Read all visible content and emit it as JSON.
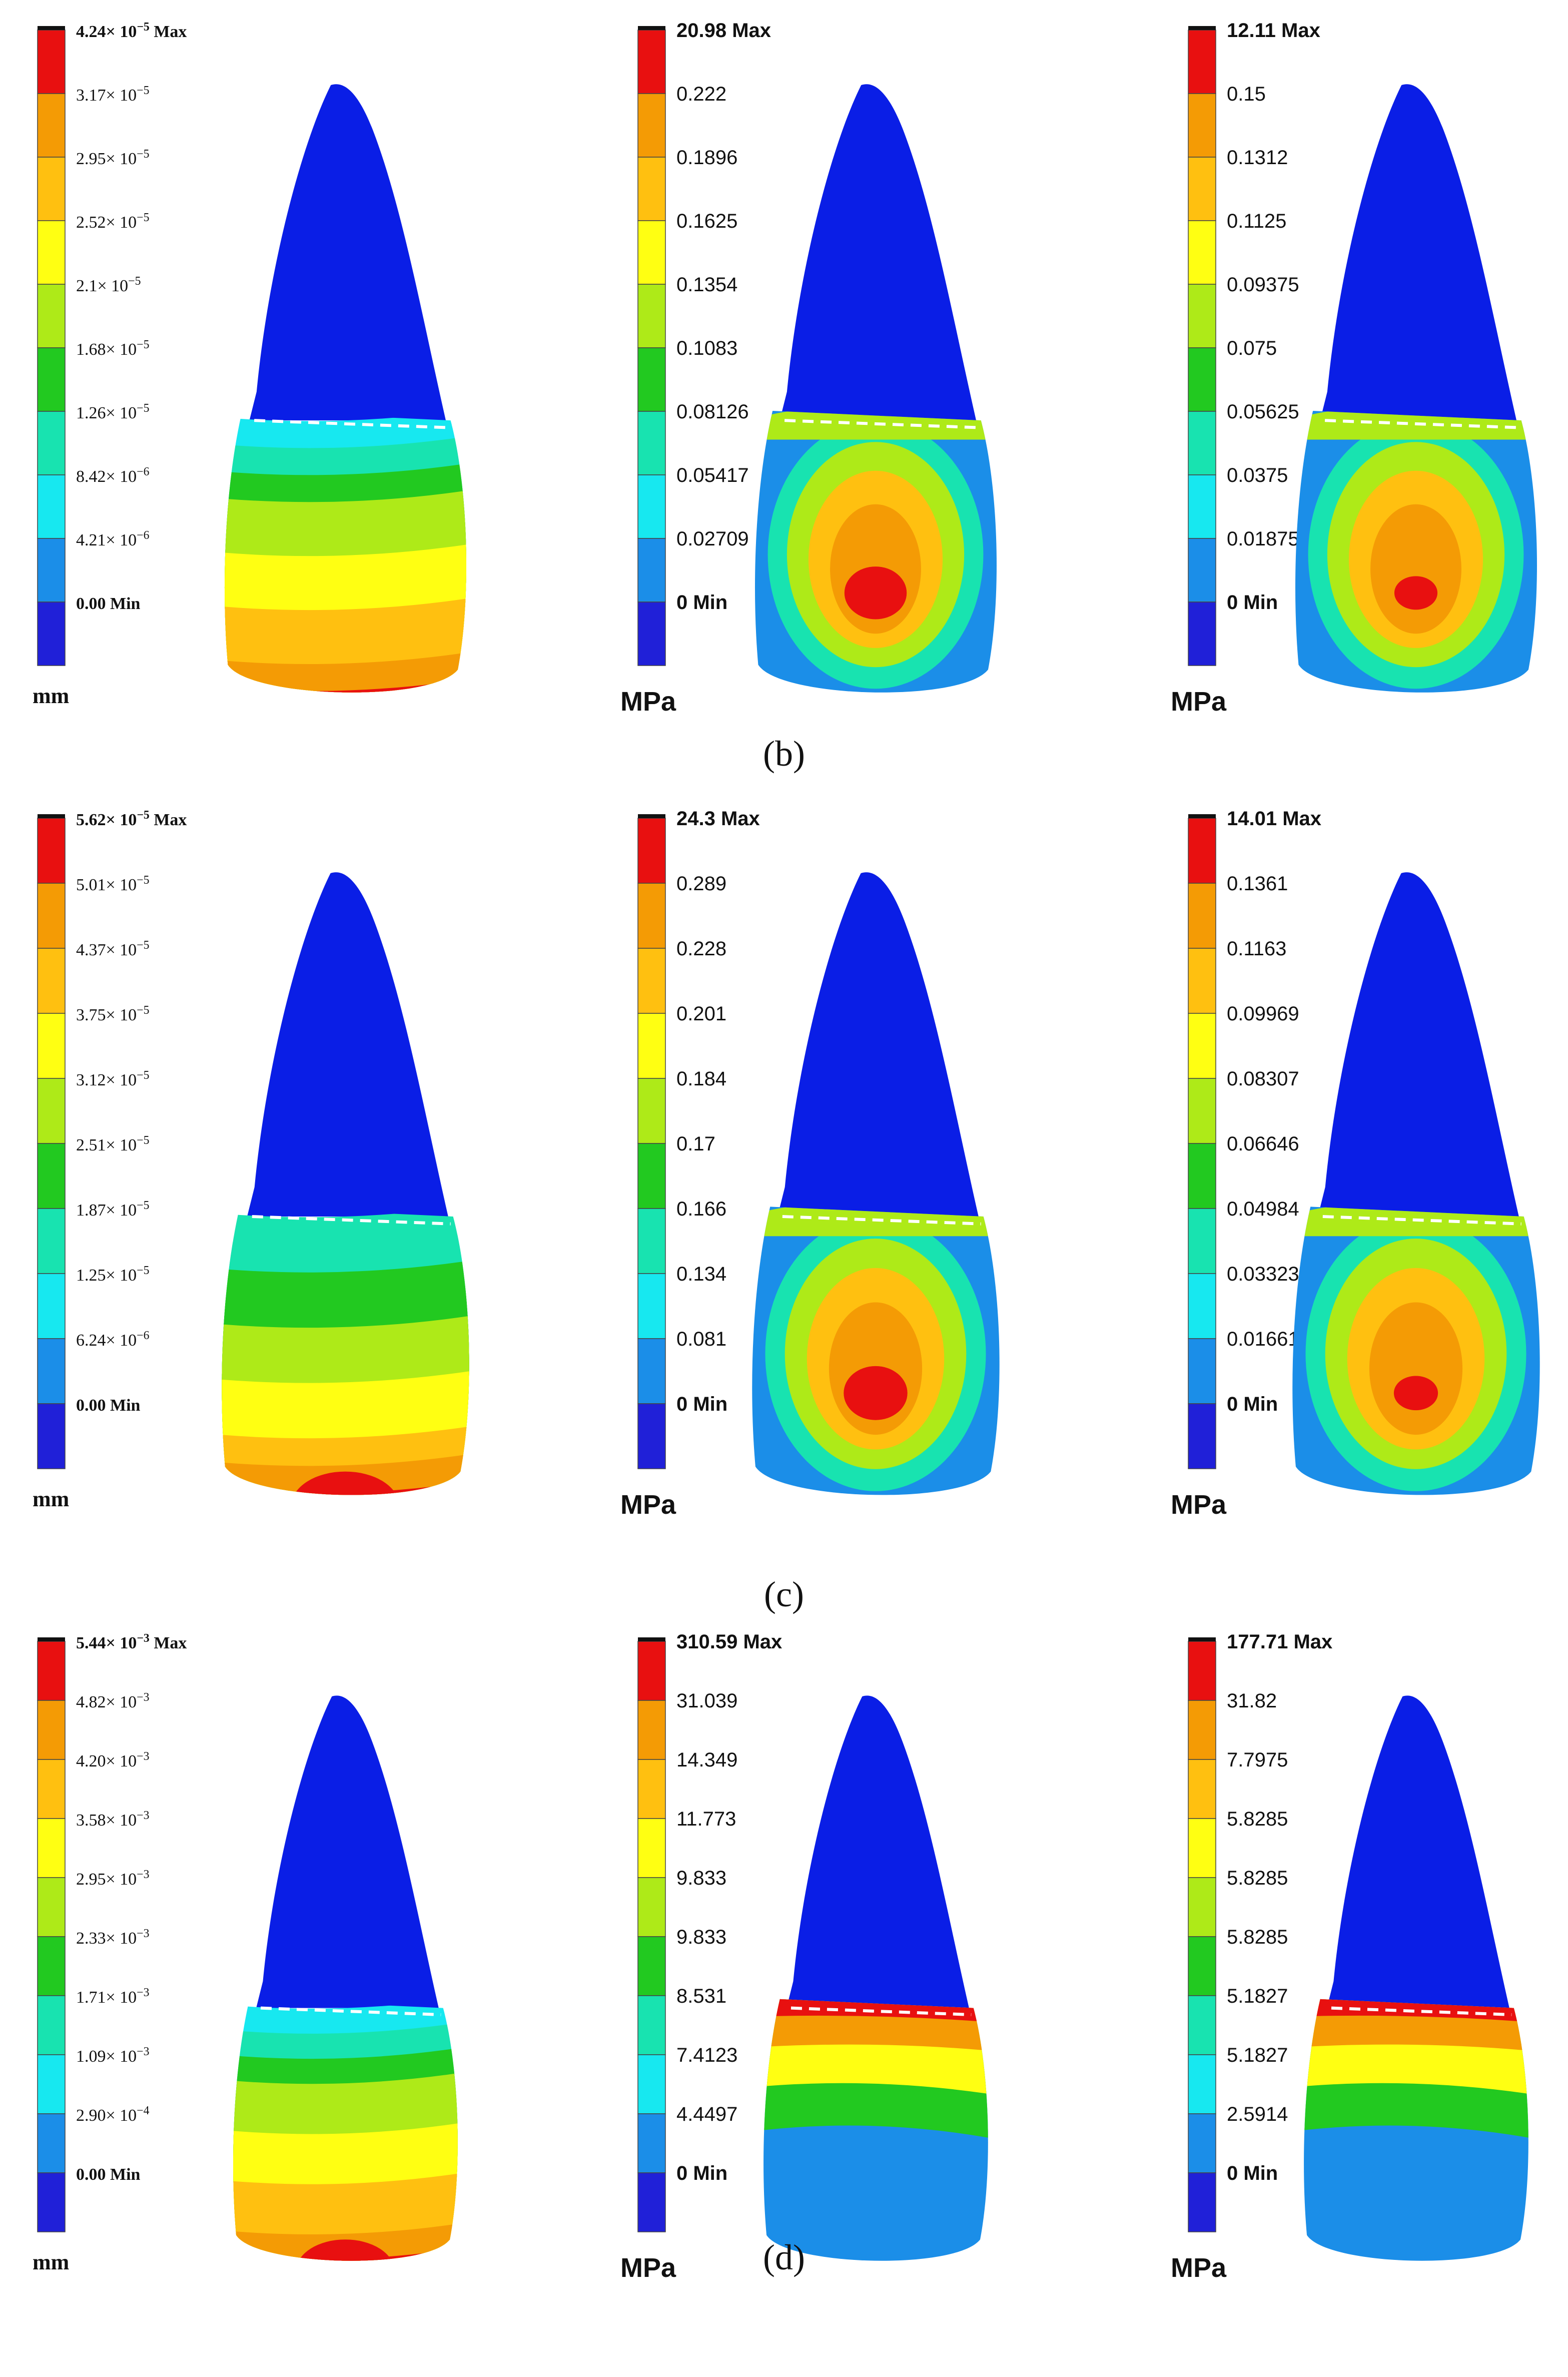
{
  "colors": {
    "tooth": "#0a1ee6",
    "line": "#ffffff",
    "scale": [
      "#2020d8",
      "#1b8ee8",
      "#17e8f0",
      "#18e3b0",
      "#22c920",
      "#aeea18",
      "#ffff12",
      "#ffc010",
      "#f49b05",
      "#e81010"
    ]
  },
  "rows": [
    {
      "caption": "(b)",
      "panels": [
        {
          "kind": "disp",
          "max": "4.24× 10",
          "max_exp": "−5",
          "max_suffix": " Max",
          "unit": "mm",
          "ticks": [
            [
              "3.17× 10",
              "−5"
            ],
            [
              "2.95× 10",
              "−5"
            ],
            [
              "2.52× 10",
              "−5"
            ],
            [
              "2.1× 10",
              "−5"
            ],
            [
              "1.68× 10",
              "−5"
            ],
            [
              "1.26× 10",
              "−5"
            ],
            [
              "8.42× 10",
              "−6"
            ],
            [
              "4.21× 10",
              "−6"
            ],
            [
              "0.00 Min",
              ""
            ]
          ]
        },
        {
          "kind": "stress",
          "max": "20.98 Max",
          "unit": "MPa",
          "ticks": [
            "0.222",
            "0.1896",
            "0.1625",
            "0.1354",
            "0.1083",
            "0.08126",
            "0.05417",
            "0.02709",
            "0 Min"
          ]
        },
        {
          "kind": "stress",
          "max": "12.11 Max",
          "unit": "MPa",
          "ticks": [
            "0.15",
            "0.1312",
            "0.1125",
            "0.09375",
            "0.075",
            "0.05625",
            "0.0375",
            "0.01875",
            "0 Min"
          ]
        }
      ]
    },
    {
      "caption": "(c)",
      "panels": [
        {
          "kind": "disp",
          "max": "5.62× 10",
          "max_exp": "−5",
          "max_suffix": " Max",
          "unit": "mm",
          "ticks": [
            [
              "5.01× 10",
              "−5"
            ],
            [
              "4.37× 10",
              "−5"
            ],
            [
              "3.75× 10",
              "−5"
            ],
            [
              "3.12× 10",
              "−5"
            ],
            [
              "2.51× 10",
              "−5"
            ],
            [
              "1.87× 10",
              "−5"
            ],
            [
              "1.25× 10",
              "−5"
            ],
            [
              "6.24× 10",
              "−6"
            ],
            [
              "0.00 Min",
              ""
            ]
          ]
        },
        {
          "kind": "stress",
          "max": "24.3 Max",
          "unit": "MPa",
          "ticks": [
            "0.289",
            "0.228",
            "0.201",
            "0.184",
            "0.17",
            "0.166",
            "0.134",
            "0.081",
            "0 Min"
          ]
        },
        {
          "kind": "stress",
          "max": "14.01 Max",
          "unit": "MPa",
          "ticks": [
            "0.1361",
            "0.1163",
            "0.09969",
            "0.08307",
            "0.06646",
            "0.04984",
            "0.03323",
            "0.01661",
            "0 Min"
          ]
        }
      ]
    },
    {
      "caption": "(d)",
      "panels": [
        {
          "kind": "disp",
          "max": "5.44× 10",
          "max_exp": "−3",
          "max_suffix": " Max",
          "unit": "mm",
          "ticks": [
            [
              "4.82× 10",
              "−3"
            ],
            [
              "4.20× 10",
              "−3"
            ],
            [
              "3.58× 10",
              "−3"
            ],
            [
              "2.95× 10",
              "−3"
            ],
            [
              "2.33× 10",
              "−3"
            ],
            [
              "1.71× 10",
              "−3"
            ],
            [
              "1.09× 10",
              "−3"
            ],
            [
              "2.90× 10",
              "−4"
            ],
            [
              "0.00 Min",
              ""
            ]
          ]
        },
        {
          "kind": "stress",
          "max": "310.59 Max",
          "unit": "MPa",
          "ticks": [
            "31.039",
            "14.349",
            "11.773",
            "9.833",
            "9.833",
            "8.531",
            "7.4123",
            "4.4497",
            "0 Min"
          ]
        },
        {
          "kind": "stress",
          "max": "177.71 Max",
          "unit": "MPa",
          "ticks": [
            "31.82",
            "7.7975",
            "5.8285",
            "5.8285",
            "5.8285",
            "5.1827",
            "5.1827",
            "2.5914",
            "0 Min"
          ]
        }
      ]
    }
  ]
}
